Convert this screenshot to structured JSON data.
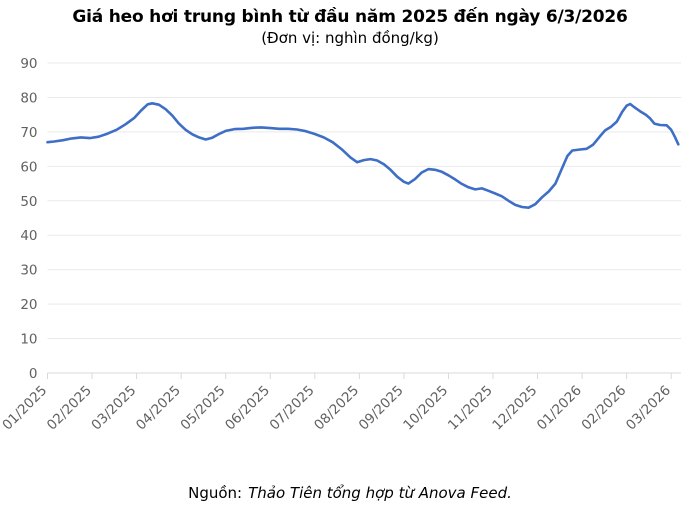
{
  "chart": {
    "title": "Giá heo hơi trung bình từ đầu năm 2025 đến ngày 6/3/2026",
    "subtitle": "(Đơn vị: nghìn đồng/kg)"
  },
  "footer": {
    "source_label": "Nguồn:",
    "source_text": "Thảo Tiên tổng hợp từ Anova Feed."
  },
  "chart_data": {
    "type": "line",
    "title": "Giá heo hơi trung bình từ đầu năm 2025 đến ngày 6/3/2026",
    "unit": "nghìn đồng/kg",
    "grid": true,
    "legend_position": "none",
    "line_color": "#3e6ec5",
    "grid_color": "#e9e9e9",
    "axis_color": "#d9d9d9",
    "label_color": "#616161",
    "ylim": [
      0,
      90
    ],
    "y_ticks": [
      0,
      10,
      20,
      30,
      40,
      50,
      60,
      70,
      80,
      90
    ],
    "x_tick_labels": [
      "01/2025",
      "02/2025",
      "03/2025",
      "04/2025",
      "05/2025",
      "06/2025",
      "07/2025",
      "08/2025",
      "09/2025",
      "10/2025",
      "11/2025",
      "12/2025",
      "01/2026",
      "02/2026",
      "03/2026"
    ],
    "series": [
      {
        "name": "Giá heo hơi trung bình (nghìn đồng/kg)",
        "x_unit": "month index from 01/2025 tick",
        "points": [
          [
            0.0,
            67.0
          ],
          [
            0.15,
            67.2
          ],
          [
            0.35,
            67.6
          ],
          [
            0.55,
            68.1
          ],
          [
            0.75,
            68.4
          ],
          [
            0.95,
            68.2
          ],
          [
            1.15,
            68.6
          ],
          [
            1.35,
            69.5
          ],
          [
            1.55,
            70.6
          ],
          [
            1.75,
            72.2
          ],
          [
            1.95,
            74.1
          ],
          [
            2.1,
            76.2
          ],
          [
            2.25,
            78.0
          ],
          [
            2.35,
            78.3
          ],
          [
            2.5,
            77.9
          ],
          [
            2.65,
            76.6
          ],
          [
            2.8,
            74.8
          ],
          [
            2.95,
            72.4
          ],
          [
            3.1,
            70.6
          ],
          [
            3.25,
            69.3
          ],
          [
            3.4,
            68.4
          ],
          [
            3.55,
            67.8
          ],
          [
            3.7,
            68.3
          ],
          [
            3.85,
            69.4
          ],
          [
            4.0,
            70.3
          ],
          [
            4.2,
            70.8
          ],
          [
            4.4,
            70.9
          ],
          [
            4.6,
            71.2
          ],
          [
            4.8,
            71.3
          ],
          [
            5.0,
            71.1
          ],
          [
            5.2,
            70.9
          ],
          [
            5.4,
            70.9
          ],
          [
            5.6,
            70.7
          ],
          [
            5.8,
            70.2
          ],
          [
            6.0,
            69.4
          ],
          [
            6.2,
            68.4
          ],
          [
            6.4,
            67.0
          ],
          [
            6.6,
            65.0
          ],
          [
            6.8,
            62.6
          ],
          [
            6.95,
            61.2
          ],
          [
            7.1,
            61.8
          ],
          [
            7.25,
            62.1
          ],
          [
            7.4,
            61.7
          ],
          [
            7.55,
            60.6
          ],
          [
            7.7,
            59.0
          ],
          [
            7.85,
            57.0
          ],
          [
            8.0,
            55.5
          ],
          [
            8.1,
            55.0
          ],
          [
            8.25,
            56.3
          ],
          [
            8.4,
            58.2
          ],
          [
            8.55,
            59.2
          ],
          [
            8.7,
            59.0
          ],
          [
            8.85,
            58.4
          ],
          [
            9.0,
            57.4
          ],
          [
            9.15,
            56.2
          ],
          [
            9.3,
            54.9
          ],
          [
            9.45,
            53.9
          ],
          [
            9.6,
            53.3
          ],
          [
            9.75,
            53.6
          ],
          [
            9.9,
            52.9
          ],
          [
            10.05,
            52.1
          ],
          [
            10.2,
            51.3
          ],
          [
            10.35,
            50.0
          ],
          [
            10.5,
            48.8
          ],
          [
            10.65,
            48.2
          ],
          [
            10.8,
            48.0
          ],
          [
            10.95,
            49.0
          ],
          [
            11.1,
            51.0
          ],
          [
            11.25,
            52.7
          ],
          [
            11.4,
            55.0
          ],
          [
            11.55,
            59.5
          ],
          [
            11.67,
            63.0
          ],
          [
            11.78,
            64.6
          ],
          [
            11.95,
            64.9
          ],
          [
            12.1,
            65.1
          ],
          [
            12.25,
            66.3
          ],
          [
            12.4,
            68.7
          ],
          [
            12.52,
            70.5
          ],
          [
            12.65,
            71.5
          ],
          [
            12.78,
            73.0
          ],
          [
            12.9,
            75.8
          ],
          [
            13.0,
            77.6
          ],
          [
            13.08,
            78.1
          ],
          [
            13.17,
            77.2
          ],
          [
            13.3,
            76.0
          ],
          [
            13.43,
            75.0
          ],
          [
            13.52,
            74.0
          ],
          [
            13.62,
            72.4
          ],
          [
            13.75,
            72.0
          ],
          [
            13.9,
            71.9
          ],
          [
            14.0,
            70.6
          ],
          [
            14.08,
            68.6
          ],
          [
            14.16,
            66.4
          ]
        ]
      }
    ]
  }
}
